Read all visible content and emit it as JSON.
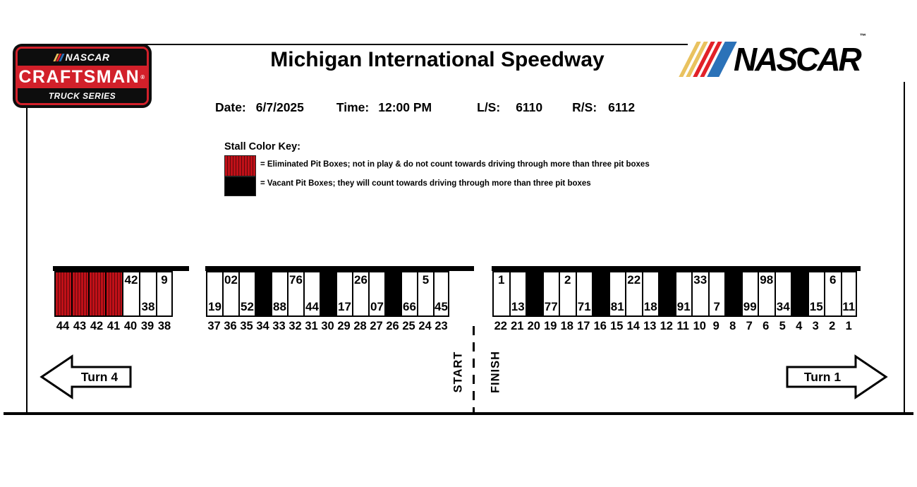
{
  "header": {
    "title": "Michigan International Speedway",
    "date_label": "Date:",
    "date_value": "6/7/2025",
    "time_label": "Time:",
    "time_value": "12:00 PM",
    "ls_label": "L/S:",
    "ls_value": "6110",
    "rs_label": "R/S:",
    "rs_value": "6112"
  },
  "logos": {
    "craftsman": {
      "nascar_text": "NASCAR",
      "name": "CRAFTSMAN",
      "registered": "®",
      "series": "TRUCK SERIES"
    },
    "nascar": {
      "text": "NASCAR",
      "tm": "™"
    }
  },
  "legend": {
    "title": "Stall Color Key:",
    "items": [
      {
        "type": "eliminated",
        "text": "= Eliminated Pit Boxes; not in play & do not count towards driving through more than three pit boxes"
      },
      {
        "type": "vacant",
        "text": "= Vacant Pit Boxes; they will count towards driving through more than three pit boxes"
      }
    ]
  },
  "colors": {
    "eliminated_fill": "#c01018",
    "eliminated_stripe": "#5e080c",
    "vacant_fill": "#000000",
    "craftsman_red": "#d2202a",
    "nascar_yellow": "#e9c25f",
    "nascar_red": "#e22128",
    "nascar_blue": "#2b72b8"
  },
  "pit_groups": [
    {
      "stalls": [
        {
          "stall": "44",
          "status": "eliminated",
          "car": null,
          "label_pos": null
        },
        {
          "stall": "43",
          "status": "eliminated",
          "car": null,
          "label_pos": null
        },
        {
          "stall": "42",
          "status": "eliminated",
          "car": null,
          "label_pos": null
        },
        {
          "stall": "41",
          "status": "eliminated",
          "car": null,
          "label_pos": null
        },
        {
          "stall": "40",
          "status": "occupied",
          "car": "42",
          "label_pos": "top"
        },
        {
          "stall": "39",
          "status": "occupied",
          "car": "38",
          "label_pos": "bottom"
        },
        {
          "stall": "38",
          "status": "occupied",
          "car": "9",
          "label_pos": "top"
        }
      ]
    },
    {
      "stalls": [
        {
          "stall": "37",
          "status": "occupied",
          "car": "19",
          "label_pos": "bottom"
        },
        {
          "stall": "36",
          "status": "occupied",
          "car": "02",
          "label_pos": "top"
        },
        {
          "stall": "35",
          "status": "occupied",
          "car": "52",
          "label_pos": "bottom"
        },
        {
          "stall": "34",
          "status": "vacant",
          "car": null,
          "label_pos": null
        },
        {
          "stall": "33",
          "status": "occupied",
          "car": "88",
          "label_pos": "bottom"
        },
        {
          "stall": "32",
          "status": "occupied",
          "car": "76",
          "label_pos": "top"
        },
        {
          "stall": "31",
          "status": "occupied",
          "car": "44",
          "label_pos": "bottom"
        },
        {
          "stall": "30",
          "status": "vacant",
          "car": null,
          "label_pos": null
        },
        {
          "stall": "29",
          "status": "occupied",
          "car": "17",
          "label_pos": "bottom"
        },
        {
          "stall": "28",
          "status": "occupied",
          "car": "26",
          "label_pos": "top"
        },
        {
          "stall": "27",
          "status": "occupied",
          "car": "07",
          "label_pos": "bottom"
        },
        {
          "stall": "26",
          "status": "vacant",
          "car": null,
          "label_pos": null
        },
        {
          "stall": "25",
          "status": "occupied",
          "car": "66",
          "label_pos": "bottom"
        },
        {
          "stall": "24",
          "status": "occupied",
          "car": "5",
          "label_pos": "top"
        },
        {
          "stall": "23",
          "status": "occupied",
          "car": "45",
          "label_pos": "bottom"
        }
      ]
    },
    {
      "stalls": [
        {
          "stall": "22",
          "status": "occupied",
          "car": "1",
          "label_pos": "top"
        },
        {
          "stall": "21",
          "status": "occupied",
          "car": "13",
          "label_pos": "bottom"
        },
        {
          "stall": "20",
          "status": "vacant",
          "car": null,
          "label_pos": null
        },
        {
          "stall": "19",
          "status": "occupied",
          "car": "77",
          "label_pos": "bottom"
        },
        {
          "stall": "18",
          "status": "occupied",
          "car": "2",
          "label_pos": "top"
        },
        {
          "stall": "17",
          "status": "occupied",
          "car": "71",
          "label_pos": "bottom"
        },
        {
          "stall": "16",
          "status": "vacant",
          "car": null,
          "label_pos": null
        },
        {
          "stall": "15",
          "status": "occupied",
          "car": "81",
          "label_pos": "bottom"
        },
        {
          "stall": "14",
          "status": "occupied",
          "car": "22",
          "label_pos": "top"
        },
        {
          "stall": "13",
          "status": "occupied",
          "car": "18",
          "label_pos": "bottom"
        },
        {
          "stall": "12",
          "status": "vacant",
          "car": null,
          "label_pos": null
        },
        {
          "stall": "11",
          "status": "occupied",
          "car": "91",
          "label_pos": "bottom"
        },
        {
          "stall": "10",
          "status": "occupied",
          "car": "33",
          "label_pos": "top"
        },
        {
          "stall": "9",
          "status": "occupied",
          "car": "7",
          "label_pos": "bottom"
        },
        {
          "stall": "8",
          "status": "vacant",
          "car": null,
          "label_pos": null
        },
        {
          "stall": "7",
          "status": "occupied",
          "car": "99",
          "label_pos": "bottom"
        },
        {
          "stall": "6",
          "status": "occupied",
          "car": "98",
          "label_pos": "top"
        },
        {
          "stall": "5",
          "status": "occupied",
          "car": "34",
          "label_pos": "bottom"
        },
        {
          "stall": "4",
          "status": "vacant",
          "car": null,
          "label_pos": null
        },
        {
          "stall": "3",
          "status": "occupied",
          "car": "15",
          "label_pos": "bottom"
        },
        {
          "stall": "2",
          "status": "occupied",
          "car": "6",
          "label_pos": "top"
        },
        {
          "stall": "1",
          "status": "occupied",
          "car": "11",
          "label_pos": "bottom"
        }
      ]
    }
  ],
  "track": {
    "start_label": "START",
    "finish_label": "FINISH",
    "turn_left_label": "Turn 4",
    "turn_right_label": "Turn 1"
  }
}
